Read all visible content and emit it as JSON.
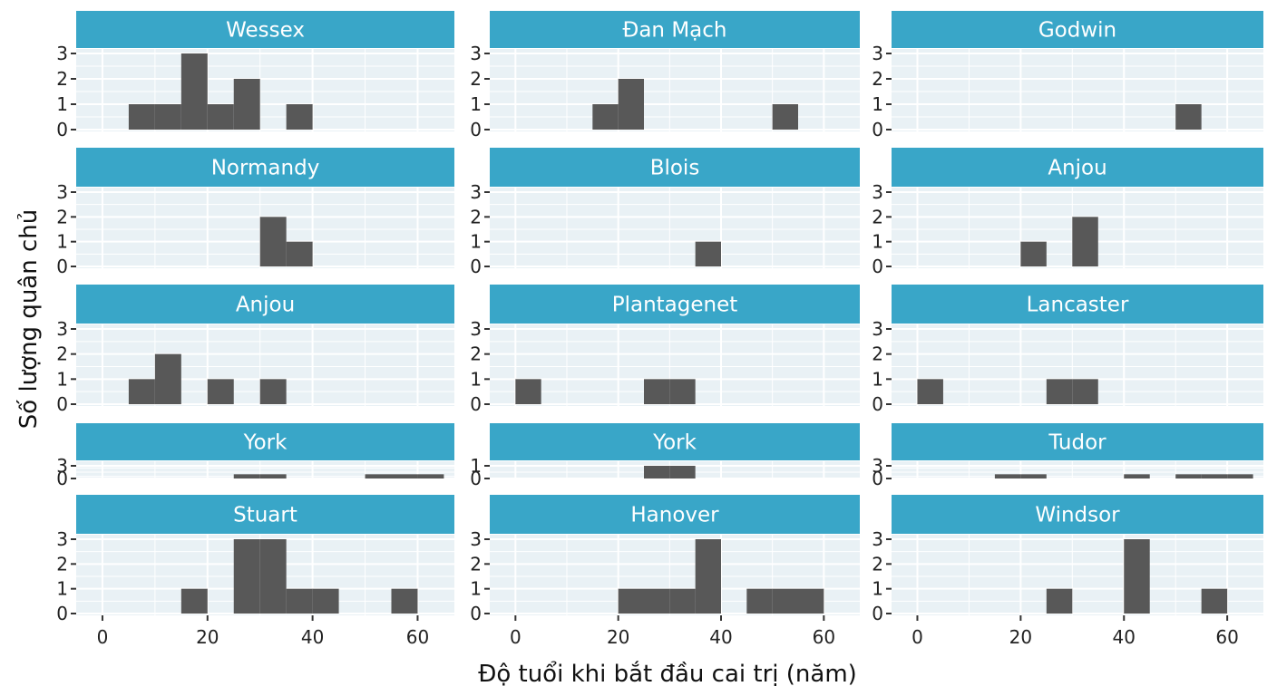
{
  "chart_data": {
    "type": "bar",
    "xlabel": "Độ tuổi khi bắt đầu cai trị (năm)",
    "ylabel": "Số lượng quân chủ",
    "x_ticks": [
      0,
      20,
      40,
      60
    ],
    "xlim": [
      -5,
      67
    ],
    "bin_width": 5,
    "colors": {
      "strip": "#39a6c8",
      "panel": "#e9f1f5",
      "grid": "#ffffff",
      "bar": "#585858"
    },
    "panels": [
      {
        "title": "Wessex",
        "ylim": [
          0,
          3
        ],
        "y_ticks": [
          0,
          1,
          2,
          3
        ],
        "bins": [
          {
            "x": 7.5,
            "count": 1
          },
          {
            "x": 12.5,
            "count": 1
          },
          {
            "x": 17.5,
            "count": 3
          },
          {
            "x": 22.5,
            "count": 1
          },
          {
            "x": 27.5,
            "count": 2
          },
          {
            "x": 37.5,
            "count": 1
          }
        ]
      },
      {
        "title": "Đan Mạch",
        "ylim": [
          0,
          3
        ],
        "y_ticks": [
          0,
          1,
          2,
          3
        ],
        "bins": [
          {
            "x": 17.5,
            "count": 1
          },
          {
            "x": 22.5,
            "count": 2
          },
          {
            "x": 52.5,
            "count": 1
          }
        ]
      },
      {
        "title": "Godwin",
        "ylim": [
          0,
          3
        ],
        "y_ticks": [
          0,
          1,
          2,
          3
        ],
        "bins": [
          {
            "x": 52.5,
            "count": 1
          }
        ]
      },
      {
        "title": "Normandy",
        "ylim": [
          0,
          3
        ],
        "y_ticks": [
          0,
          1,
          2,
          3
        ],
        "bins": [
          {
            "x": 32.5,
            "count": 2
          },
          {
            "x": 37.5,
            "count": 1
          }
        ]
      },
      {
        "title": "Blois",
        "ylim": [
          0,
          3
        ],
        "y_ticks": [
          0,
          1,
          2,
          3
        ],
        "bins": [
          {
            "x": 37.5,
            "count": 1
          }
        ]
      },
      {
        "title": "Anjou",
        "ylim": [
          0,
          3
        ],
        "y_ticks": [
          0,
          1,
          2,
          3
        ],
        "bins": [
          {
            "x": 22.5,
            "count": 1
          },
          {
            "x": 32.5,
            "count": 2
          }
        ]
      },
      {
        "title": "Anjou",
        "ylim": [
          0,
          3
        ],
        "y_ticks": [
          0,
          1,
          2,
          3
        ],
        "bins": [
          {
            "x": 7.5,
            "count": 1
          },
          {
            "x": 12.5,
            "count": 2
          },
          {
            "x": 22.5,
            "count": 1
          },
          {
            "x": 32.5,
            "count": 1
          }
        ]
      },
      {
        "title": "Plantagenet",
        "ylim": [
          0,
          3
        ],
        "y_ticks": [
          0,
          1,
          2,
          3
        ],
        "bins": [
          {
            "x": 2.5,
            "count": 1
          },
          {
            "x": 27.5,
            "count": 1
          },
          {
            "x": 32.5,
            "count": 1
          }
        ]
      },
      {
        "title": "Lancaster",
        "ylim": [
          0,
          3
        ],
        "y_ticks": [
          0,
          1,
          2,
          3
        ],
        "bins": [
          {
            "x": 2.5,
            "count": 1
          },
          {
            "x": 27.5,
            "count": 1
          },
          {
            "x": 32.5,
            "count": 1
          }
        ]
      },
      {
        "title": "York",
        "ylim": [
          0,
          3
        ],
        "y_ticks": [
          0,
          3
        ],
        "bins": [
          {
            "x": 27.5,
            "count": 1
          },
          {
            "x": 32.5,
            "count": 1
          },
          {
            "x": 52.5,
            "count": 1
          },
          {
            "x": 57.5,
            "count": 1
          },
          {
            "x": 62.5,
            "count": 1
          }
        ]
      },
      {
        "title": "York",
        "ylim": [
          0,
          1
        ],
        "y_ticks": [
          0,
          1
        ],
        "bins": [
          {
            "x": 27.5,
            "count": 1
          },
          {
            "x": 32.5,
            "count": 1
          }
        ]
      },
      {
        "title": "Tudor",
        "ylim": [
          0,
          3
        ],
        "y_ticks": [
          0,
          3
        ],
        "bins": [
          {
            "x": 17.5,
            "count": 1
          },
          {
            "x": 22.5,
            "count": 1
          },
          {
            "x": 42.5,
            "count": 1
          },
          {
            "x": 52.5,
            "count": 1
          },
          {
            "x": 57.5,
            "count": 1
          },
          {
            "x": 62.5,
            "count": 1
          }
        ]
      },
      {
        "title": "Stuart",
        "ylim": [
          0,
          3
        ],
        "y_ticks": [
          0,
          1,
          2,
          3
        ],
        "bins": [
          {
            "x": 17.5,
            "count": 1
          },
          {
            "x": 27.5,
            "count": 3
          },
          {
            "x": 32.5,
            "count": 3
          },
          {
            "x": 37.5,
            "count": 1
          },
          {
            "x": 42.5,
            "count": 1
          },
          {
            "x": 57.5,
            "count": 1
          }
        ]
      },
      {
        "title": "Hanover",
        "ylim": [
          0,
          3
        ],
        "y_ticks": [
          0,
          1,
          2,
          3
        ],
        "bins": [
          {
            "x": 22.5,
            "count": 1
          },
          {
            "x": 27.5,
            "count": 1
          },
          {
            "x": 32.5,
            "count": 1
          },
          {
            "x": 37.5,
            "count": 3
          },
          {
            "x": 47.5,
            "count": 1
          },
          {
            "x": 52.5,
            "count": 1
          },
          {
            "x": 57.5,
            "count": 1
          }
        ]
      },
      {
        "title": "Windsor",
        "ylim": [
          0,
          3
        ],
        "y_ticks": [
          0,
          1,
          2,
          3
        ],
        "bins": [
          {
            "x": 27.5,
            "count": 1
          },
          {
            "x": 42.5,
            "count": 3
          },
          {
            "x": 57.5,
            "count": 1
          }
        ]
      }
    ]
  }
}
